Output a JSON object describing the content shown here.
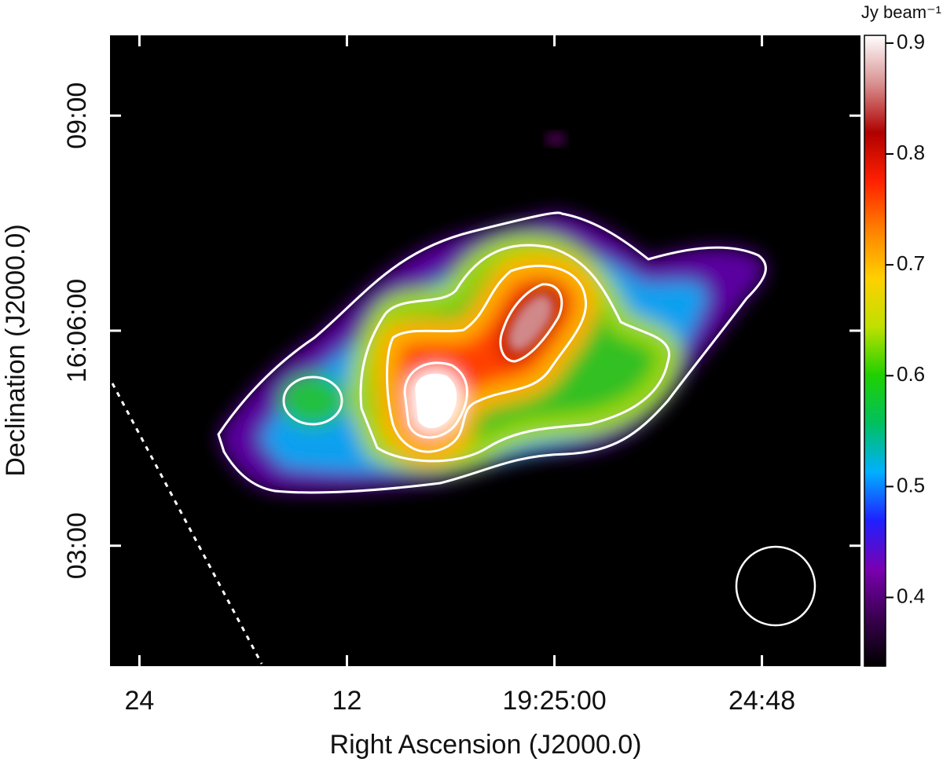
{
  "chart_data": {
    "type": "image",
    "x_label": "Right Ascension (J2000.0)",
    "y_label": "Declination (J2000.0)",
    "colorbar_label": "Jy beam⁻¹",
    "xlim": [
      25.7,
      -17.7
    ],
    "xticks": [
      {
        "value": 24,
        "label": "24"
      },
      {
        "value": 12,
        "label": "12"
      },
      {
        "value": 0,
        "label": "19:25:00"
      },
      {
        "value": -12,
        "label": "24:48"
      }
    ],
    "ylim": [
      1.32,
      10.12
    ],
    "yticks": [
      {
        "value": 9,
        "label": "09:00"
      },
      {
        "value": 6,
        "label": "16:06:00"
      },
      {
        "value": 3,
        "label": "03:00"
      }
    ],
    "clim": [
      0.338,
      0.907
    ],
    "cticks": [
      0.4,
      0.5,
      0.6,
      0.7,
      0.8,
      0.9
    ],
    "colormap": [
      "#000000",
      "#3a0050",
      "#7a00b0",
      "#2020ff",
      "#00b0ff",
      "#00c060",
      "#20d000",
      "#c0e000",
      "#ffd000",
      "#ff8000",
      "#ff2000",
      "#b00000",
      "#d89090",
      "#ffffff"
    ]
  }
}
